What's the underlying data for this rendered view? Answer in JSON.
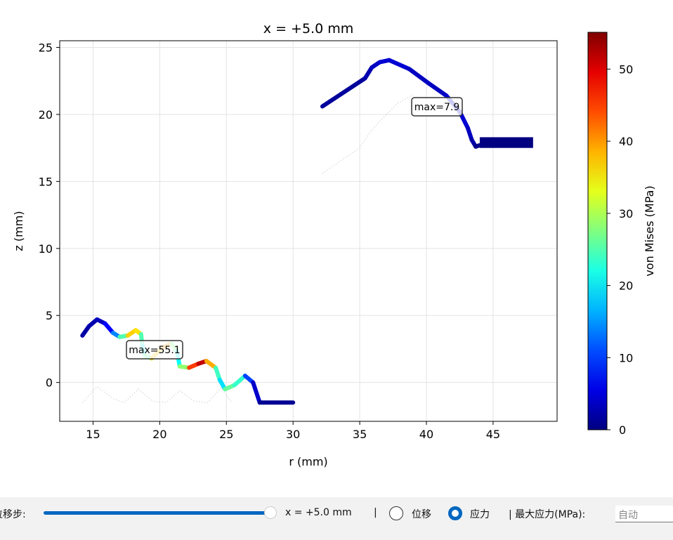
{
  "chart_data": {
    "type": "line",
    "title": "x = +5.0 mm",
    "xlabel": "r (mm)",
    "ylabel": "z (mm)",
    "xlim": [
      12.5,
      49.8
    ],
    "ylim": [
      -2.9,
      25.5
    ],
    "xticks": [
      15,
      20,
      25,
      30,
      35,
      40,
      45
    ],
    "yticks": [
      0,
      5,
      10,
      15,
      20,
      25
    ],
    "grid": true,
    "colormap": "jet",
    "colorbar": {
      "label": "von Mises (MPa)",
      "range": [
        0,
        55.1
      ],
      "ticks": [
        0,
        10,
        20,
        30,
        40,
        50
      ]
    },
    "series": [
      {
        "points": [
          [
            14.2,
            3.5,
            2
          ],
          [
            14.7,
            4.2,
            2
          ],
          [
            15.3,
            4.7,
            3
          ],
          [
            15.9,
            4.4,
            4
          ],
          [
            16.5,
            3.7,
            10
          ],
          [
            17.0,
            3.4,
            18
          ],
          [
            17.6,
            3.5,
            32
          ],
          [
            18.2,
            3.9,
            42
          ],
          [
            18.6,
            3.6,
            30
          ],
          [
            18.7,
            2.7,
            20
          ],
          [
            18.9,
            2.0,
            22
          ],
          [
            19.4,
            1.8,
            30
          ],
          [
            20.2,
            2.6,
            45
          ],
          [
            20.9,
            2.9,
            35
          ],
          [
            21.3,
            2.3,
            20
          ],
          [
            21.5,
            1.2,
            22
          ],
          [
            22.2,
            1.1,
            35
          ],
          [
            22.9,
            1.4,
            55
          ],
          [
            23.5,
            1.6,
            48
          ],
          [
            24.2,
            1.1,
            30
          ],
          [
            24.5,
            0.2,
            18
          ],
          [
            24.9,
            -0.5,
            20
          ],
          [
            25.6,
            -0.2,
            32
          ],
          [
            26.4,
            0.5,
            15
          ],
          [
            27.0,
            0.0,
            6
          ],
          [
            27.5,
            -1.5,
            2
          ],
          [
            30.0,
            -1.5,
            0
          ]
        ],
        "max_label": "max=55.1"
      },
      {
        "points": [
          [
            32.2,
            20.6,
            1
          ],
          [
            35.4,
            22.7,
            2
          ],
          [
            35.9,
            23.5,
            3
          ],
          [
            36.5,
            23.9,
            4
          ],
          [
            37.2,
            24.05,
            5
          ],
          [
            38.7,
            23.4,
            4
          ],
          [
            40.2,
            22.3,
            3
          ],
          [
            41.5,
            21.4,
            4
          ],
          [
            42.5,
            20.2,
            5
          ],
          [
            43.1,
            19.0,
            4
          ],
          [
            43.4,
            18.1,
            3
          ],
          [
            43.7,
            17.6,
            1
          ],
          [
            44.0,
            17.7,
            0
          ]
        ],
        "region": {
          "r": [
            44.0,
            48.0
          ],
          "z": [
            17.5,
            18.3
          ],
          "stress": 0
        },
        "max_label": "max=7.9"
      }
    ],
    "undeformed_shadow": [
      [
        [
          14.2,
          -1.5
        ],
        [
          15.3,
          -0.3
        ],
        [
          16.5,
          -1.2
        ],
        [
          17.3,
          -1.5
        ],
        [
          18.4,
          -0.5
        ],
        [
          19.5,
          -1.4
        ],
        [
          20.5,
          -1.5
        ],
        [
          21.5,
          -0.6
        ],
        [
          22.6,
          -1.4
        ],
        [
          23.6,
          -1.5
        ],
        [
          24.6,
          -0.4
        ],
        [
          25.4,
          -1.5
        ]
      ],
      [
        [
          32.2,
          15.6
        ],
        [
          33.5,
          16.5
        ],
        [
          35.0,
          17.5
        ],
        [
          35.8,
          18.7
        ],
        [
          36.6,
          19.6
        ],
        [
          37.8,
          20.8
        ],
        [
          39.0,
          21.5
        ]
      ]
    ]
  },
  "controls": {
    "step_label": "位移步:",
    "slider_value": 1.0,
    "x_readout": "x = +5.0 mm",
    "separator": "|",
    "radio_displacement": "位移",
    "radio_stress": "应力",
    "selected_mode": "应力",
    "max_stress_label": "| 最大应力(MPa):",
    "max_stress_placeholder": "自动",
    "accent_color": "#0067c0"
  }
}
